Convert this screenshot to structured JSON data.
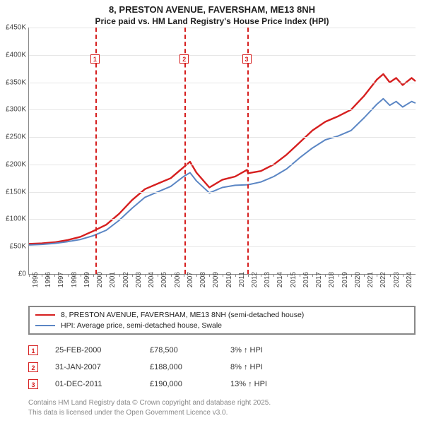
{
  "title_line1": "8, PRESTON AVENUE, FAVERSHAM, ME13 8NH",
  "title_line2": "Price paid vs. HM Land Registry's House Price Index (HPI)",
  "chart": {
    "type": "line",
    "background_color": "#ffffff",
    "grid_color": "#e6e6e6",
    "axis_color": "#888888",
    "label_fontsize": 10,
    "x": {
      "min": 1995,
      "max": 2025,
      "tick_step": 1,
      "ticks": [
        1995,
        1996,
        1997,
        1998,
        1999,
        2000,
        2001,
        2002,
        2003,
        2004,
        2005,
        2006,
        2007,
        2008,
        2009,
        2010,
        2011,
        2012,
        2013,
        2014,
        2015,
        2016,
        2017,
        2018,
        2019,
        2020,
        2021,
        2022,
        2023,
        2024
      ]
    },
    "y": {
      "min": 0,
      "max": 450000,
      "tick_step": 50000,
      "tick_labels": [
        "£0",
        "£50K",
        "£100K",
        "£150K",
        "£200K",
        "£250K",
        "£300K",
        "£350K",
        "£400K",
        "£450K"
      ]
    },
    "series": [
      {
        "name": "price_paid",
        "color": "#d61f1f",
        "line_width": 2.4,
        "points": [
          [
            1995,
            55000
          ],
          [
            1996,
            56000
          ],
          [
            1997,
            58000
          ],
          [
            1998,
            62000
          ],
          [
            1999,
            68000
          ],
          [
            2000,
            78500
          ],
          [
            2001,
            90000
          ],
          [
            2002,
            110000
          ],
          [
            2003,
            135000
          ],
          [
            2004,
            155000
          ],
          [
            2005,
            165000
          ],
          [
            2006,
            175000
          ],
          [
            2007,
            195000
          ],
          [
            2007.5,
            205000
          ],
          [
            2008,
            185000
          ],
          [
            2009,
            158000
          ],
          [
            2010,
            172000
          ],
          [
            2011,
            178000
          ],
          [
            2011.92,
            190000
          ],
          [
            2012,
            184000
          ],
          [
            2013,
            188000
          ],
          [
            2014,
            200000
          ],
          [
            2015,
            218000
          ],
          [
            2016,
            240000
          ],
          [
            2017,
            262000
          ],
          [
            2018,
            278000
          ],
          [
            2019,
            288000
          ],
          [
            2020,
            300000
          ],
          [
            2021,
            325000
          ],
          [
            2022,
            355000
          ],
          [
            2022.5,
            365000
          ],
          [
            2023,
            350000
          ],
          [
            2023.5,
            358000
          ],
          [
            2024,
            345000
          ],
          [
            2024.7,
            358000
          ],
          [
            2025,
            352000
          ]
        ]
      },
      {
        "name": "hpi",
        "color": "#5b86c4",
        "line_width": 2.0,
        "points": [
          [
            1995,
            53000
          ],
          [
            1996,
            54000
          ],
          [
            1997,
            56000
          ],
          [
            1998,
            59000
          ],
          [
            1999,
            63000
          ],
          [
            2000,
            70000
          ],
          [
            2001,
            80000
          ],
          [
            2002,
            98000
          ],
          [
            2003,
            120000
          ],
          [
            2004,
            140000
          ],
          [
            2005,
            150000
          ],
          [
            2006,
            160000
          ],
          [
            2007,
            178000
          ],
          [
            2007.5,
            185000
          ],
          [
            2008,
            170000
          ],
          [
            2009,
            148000
          ],
          [
            2010,
            158000
          ],
          [
            2011,
            162000
          ],
          [
            2012,
            163000
          ],
          [
            2013,
            168000
          ],
          [
            2014,
            178000
          ],
          [
            2015,
            192000
          ],
          [
            2016,
            212000
          ],
          [
            2017,
            230000
          ],
          [
            2018,
            245000
          ],
          [
            2019,
            252000
          ],
          [
            2020,
            262000
          ],
          [
            2021,
            285000
          ],
          [
            2022,
            310000
          ],
          [
            2022.5,
            320000
          ],
          [
            2023,
            308000
          ],
          [
            2023.5,
            315000
          ],
          [
            2024,
            305000
          ],
          [
            2024.7,
            315000
          ],
          [
            2025,
            312000
          ]
        ]
      }
    ],
    "vlines": [
      {
        "id": "1",
        "x": 2000.15,
        "color": "#d61f1f",
        "marker_y": 0.11
      },
      {
        "id": "2",
        "x": 2007.08,
        "color": "#d61f1f",
        "marker_y": 0.11
      },
      {
        "id": "3",
        "x": 2011.92,
        "color": "#d61f1f",
        "marker_y": 0.11
      }
    ]
  },
  "legend": {
    "border_color": "#888888",
    "items": [
      {
        "color": "#d61f1f",
        "label": "8, PRESTON AVENUE, FAVERSHAM, ME13 8NH (semi-detached house)"
      },
      {
        "color": "#5b86c4",
        "label": "HPI: Average price, semi-detached house, Swale"
      }
    ]
  },
  "transactions": [
    {
      "id": "1",
      "color": "#d61f1f",
      "date": "25-FEB-2000",
      "price": "£78,500",
      "pct": "3% ↑ HPI"
    },
    {
      "id": "2",
      "color": "#d61f1f",
      "date": "31-JAN-2007",
      "price": "£188,000",
      "pct": "8% ↑ HPI"
    },
    {
      "id": "3",
      "color": "#d61f1f",
      "date": "01-DEC-2011",
      "price": "£190,000",
      "pct": "13% ↑ HPI"
    }
  ],
  "footer_line1": "Contains HM Land Registry data © Crown copyright and database right 2025.",
  "footer_line2": "This data is licensed under the Open Government Licence v3.0."
}
